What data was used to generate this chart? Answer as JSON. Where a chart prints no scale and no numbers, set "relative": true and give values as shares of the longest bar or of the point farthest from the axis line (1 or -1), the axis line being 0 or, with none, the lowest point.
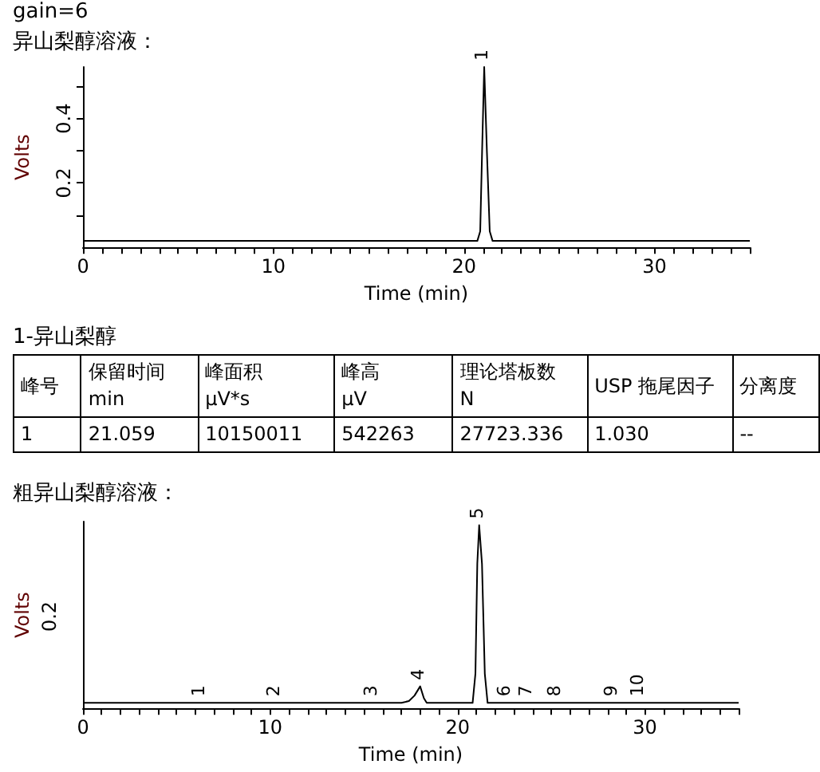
{
  "chart_data": [
    {
      "type": "line",
      "title": "gain=6",
      "subtitle": "异山梨醇溶液：",
      "xlabel": "Time (min)",
      "ylabel": "Volts",
      "xlim": [
        0,
        35
      ],
      "ylim": [
        0,
        0.56
      ],
      "xticks": [
        0,
        {
          "value": 1,
          "label": null
        },
        {
          "value": 2,
          "label": null
        },
        {
          "value": 3,
          "label": null
        },
        {
          "value": 4,
          "label": null
        },
        {
          "value": 5,
          "label": null
        },
        {
          "value": 6,
          "label": null
        },
        {
          "value": 7,
          "label": null
        },
        {
          "value": 8,
          "label": null
        },
        {
          "value": 9,
          "label": null
        },
        10,
        {
          "value": 11,
          "label": null
        },
        {
          "value": 12,
          "label": null
        },
        {
          "value": 13,
          "label": null
        },
        {
          "value": 14,
          "label": null
        },
        {
          "value": 15,
          "label": null
        },
        {
          "value": 16,
          "label": null
        },
        {
          "value": 17,
          "label": null
        },
        {
          "value": 18,
          "label": null
        },
        {
          "value": 19,
          "label": null
        },
        20,
        {
          "value": 21,
          "label": null
        },
        {
          "value": 22,
          "label": null
        },
        {
          "value": 23,
          "label": null
        },
        {
          "value": 24,
          "label": null
        },
        {
          "value": 25,
          "label": null
        },
        {
          "value": 26,
          "label": null
        },
        {
          "value": 27,
          "label": null
        },
        {
          "value": 28,
          "label": null
        },
        {
          "value": 29,
          "label": null
        },
        30,
        {
          "value": 31,
          "label": null
        },
        {
          "value": 32,
          "label": null
        },
        {
          "value": 33,
          "label": null
        },
        {
          "value": 34,
          "label": null
        },
        {
          "value": 35,
          "label": null
        }
      ],
      "yticks": [
        {
          "value": 0.1,
          "label": null
        },
        0.2,
        {
          "value": 0.3,
          "label": null
        },
        0.4,
        {
          "value": 0.5,
          "label": null
        }
      ],
      "marker": "none",
      "line_style": "solid",
      "series": [
        {
          "color": "#000000",
          "x": [
            0,
            20.7,
            20.85,
            20.95,
            21.06,
            21.2,
            21.35,
            21.5,
            35
          ],
          "values": [
            0.02,
            0.02,
            0.05,
            0.3,
            0.56,
            0.3,
            0.05,
            0.02,
            0.02
          ]
        }
      ],
      "annotations": [
        {
          "text": "1",
          "x": 21.06,
          "y": 0.56
        }
      ]
    },
    {
      "type": "other",
      "title": "1-异山梨醇",
      "categories": [
        "峰号",
        "保留时间\nmin",
        "峰面积\nμV*s",
        "峰高\nμV",
        "理论塔板数\nN",
        "USP 拖尾因子",
        "分离度"
      ],
      "value_labels": [
        "1",
        "21.059",
        "10150011",
        "542263",
        "27723.336",
        "1.030",
        "--"
      ]
    },
    {
      "type": "line",
      "title": "粗异山梨醇溶液：",
      "xlabel": "Time (min)",
      "ylabel": "Volts",
      "relative": true,
      "xlim": [
        0,
        35
      ],
      "xticks": [
        0,
        {
          "value": 1,
          "label": null
        },
        {
          "value": 2,
          "label": null
        },
        {
          "value": 3,
          "label": null
        },
        {
          "value": 4,
          "label": null
        },
        {
          "value": 5,
          "label": null
        },
        {
          "value": 6,
          "label": null
        },
        {
          "value": 7,
          "label": null
        },
        {
          "value": 8,
          "label": null
        },
        {
          "value": 9,
          "label": null
        },
        10,
        {
          "value": 11,
          "label": null
        },
        {
          "value": 12,
          "label": null
        },
        {
          "value": 13,
          "label": null
        },
        {
          "value": 14,
          "label": null
        },
        {
          "value": 15,
          "label": null
        },
        {
          "value": 16,
          "label": null
        },
        {
          "value": 17,
          "label": null
        },
        {
          "value": 18,
          "label": null
        },
        {
          "value": 19,
          "label": null
        },
        20,
        {
          "value": 21,
          "label": null
        },
        {
          "value": 22,
          "label": null
        },
        {
          "value": 23,
          "label": null
        },
        {
          "value": 24,
          "label": null
        },
        {
          "value": 25,
          "label": null
        },
        {
          "value": 26,
          "label": null
        },
        {
          "value": 27,
          "label": null
        },
        {
          "value": 28,
          "label": null
        },
        {
          "value": 29,
          "label": null
        },
        30,
        {
          "value": 31,
          "label": null
        },
        {
          "value": 32,
          "label": null
        },
        {
          "value": 33,
          "label": null
        },
        {
          "value": 34,
          "label": null
        },
        {
          "value": 35,
          "label": null
        }
      ],
      "marker": "none",
      "line_style": "solid",
      "series": [
        {
          "color": "#000000",
          "x": [
            0,
            17.0,
            17.4,
            17.7,
            18.0,
            18.2,
            18.35,
            20.8,
            20.95,
            21.05,
            21.15,
            21.3,
            21.45,
            21.6,
            35
          ],
          "values": [
            0.03,
            0.03,
            0.04,
            0.07,
            0.12,
            0.055,
            0.03,
            0.03,
            0.19,
            0.79,
            1,
            0.79,
            0.19,
            0.03,
            0.03
          ]
        }
      ],
      "annotations": [
        "0.2",
        {
          "text": "1",
          "x": 6.3,
          "y": 0.03
        },
        {
          "text": "2",
          "x": 10.3,
          "y": 0.03
        },
        {
          "text": "3",
          "x": 15.5,
          "y": 0.03
        },
        {
          "text": "4",
          "x": 18.0,
          "y": 0.12
        },
        {
          "text": "5",
          "x": 21.15,
          "y": 1
        },
        {
          "text": "6",
          "x": 22.6,
          "y": 0.03
        },
        {
          "text": "7",
          "x": 23.75,
          "y": 0.03
        },
        {
          "text": "8",
          "x": 25.3,
          "y": 0.03
        },
        {
          "text": "9",
          "x": 28.3,
          "y": 0.03
        },
        {
          "text": "10",
          "x": 29.7,
          "y": 0.03
        }
      ]
    }
  ]
}
